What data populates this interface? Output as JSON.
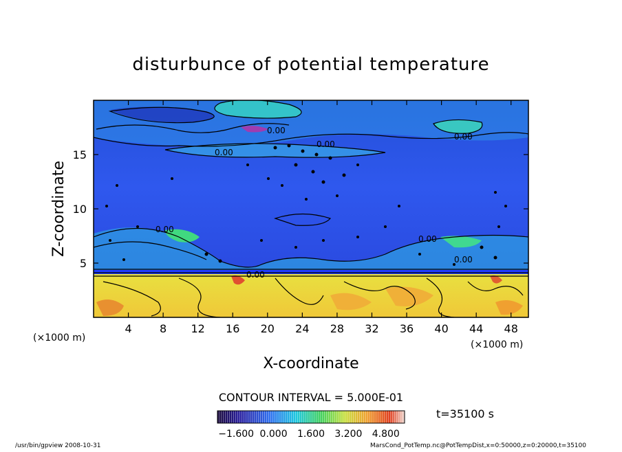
{
  "chart_data": {
    "type": "heatmap",
    "title": "disturbunce of potential temperature",
    "xlabel": "X-coordinate",
    "ylabel": "Z-coordinate",
    "x_unit_left": "(×1000 m)",
    "x_unit_right": "(×1000 m)",
    "xlim": [
      0,
      50
    ],
    "ylim": [
      0,
      20
    ],
    "x_ticks": [
      4,
      8,
      12,
      16,
      20,
      24,
      28,
      32,
      36,
      40,
      44,
      48
    ],
    "y_ticks": [
      5,
      10,
      15
    ],
    "contour_interval_text": "CONTOUR INTERVAL = 5.000E-01",
    "contour_labels": [
      "0.00",
      "0.00",
      "0.00",
      "0.00",
      "0.00",
      "0.00",
      "0.00",
      "0.00"
    ],
    "time_text": "t=35100 s",
    "colorbar": {
      "labels": [
        "−1.600",
        "0.000",
        "1.600",
        "3.200",
        "4.800"
      ],
      "range": [
        -2.4,
        5.6
      ]
    },
    "colors": {
      "upper_layer": "#2850e6",
      "lower_layer": "#f0d23c",
      "boundary": "#1f3cff"
    }
  },
  "footer": {
    "left": "/usr/bin/gpview   2008-10-31",
    "right": "MarsCond_PotTemp.nc@PotTempDist,x=0:50000,z=0:20000,t=35100"
  }
}
